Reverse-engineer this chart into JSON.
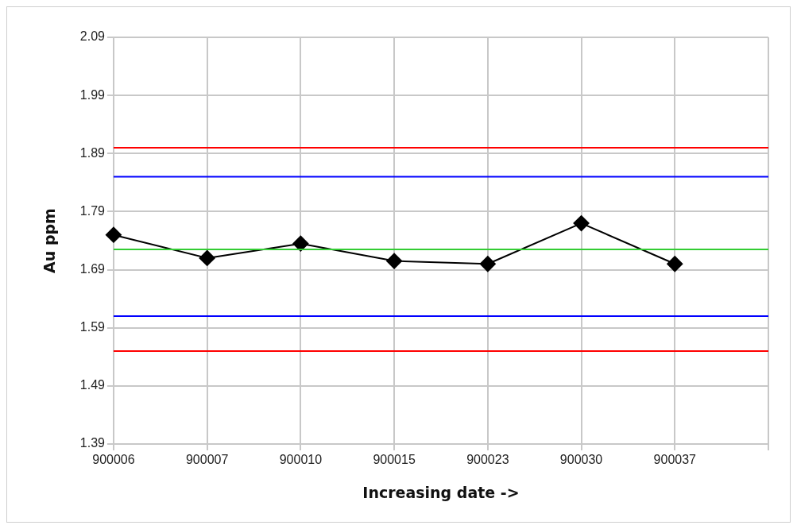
{
  "chart_data": {
    "type": "line",
    "xlabel": "Increasing date ->",
    "ylabel": "Au ppm",
    "categories": [
      "900006",
      "900007",
      "900010",
      "900015",
      "900023",
      "900030",
      "900037",
      null
    ],
    "series": [
      {
        "color": "#000000",
        "values": [
          1.75,
          1.71,
          1.735,
          1.705,
          1.7,
          1.77,
          1.7,
          null
        ]
      }
    ],
    "ylim": [
      1.39,
      2.09
    ],
    "yticks": [
      1.39,
      1.49,
      1.59,
      1.69,
      1.79,
      1.89,
      1.99,
      2.09
    ],
    "ref_lines": [
      {
        "axis": "y",
        "value": 1.9,
        "color": "#ff0000"
      },
      {
        "axis": "y",
        "value": 1.85,
        "color": "#0000ff"
      },
      {
        "axis": "y",
        "value": 1.725,
        "color": "#33cc33"
      },
      {
        "axis": "y",
        "value": 1.61,
        "color": "#0000ff"
      },
      {
        "axis": "y",
        "value": 1.55,
        "color": "#ff0000"
      }
    ],
    "grid": true,
    "legend": false,
    "marker": "diamond",
    "line_style": "solid"
  }
}
